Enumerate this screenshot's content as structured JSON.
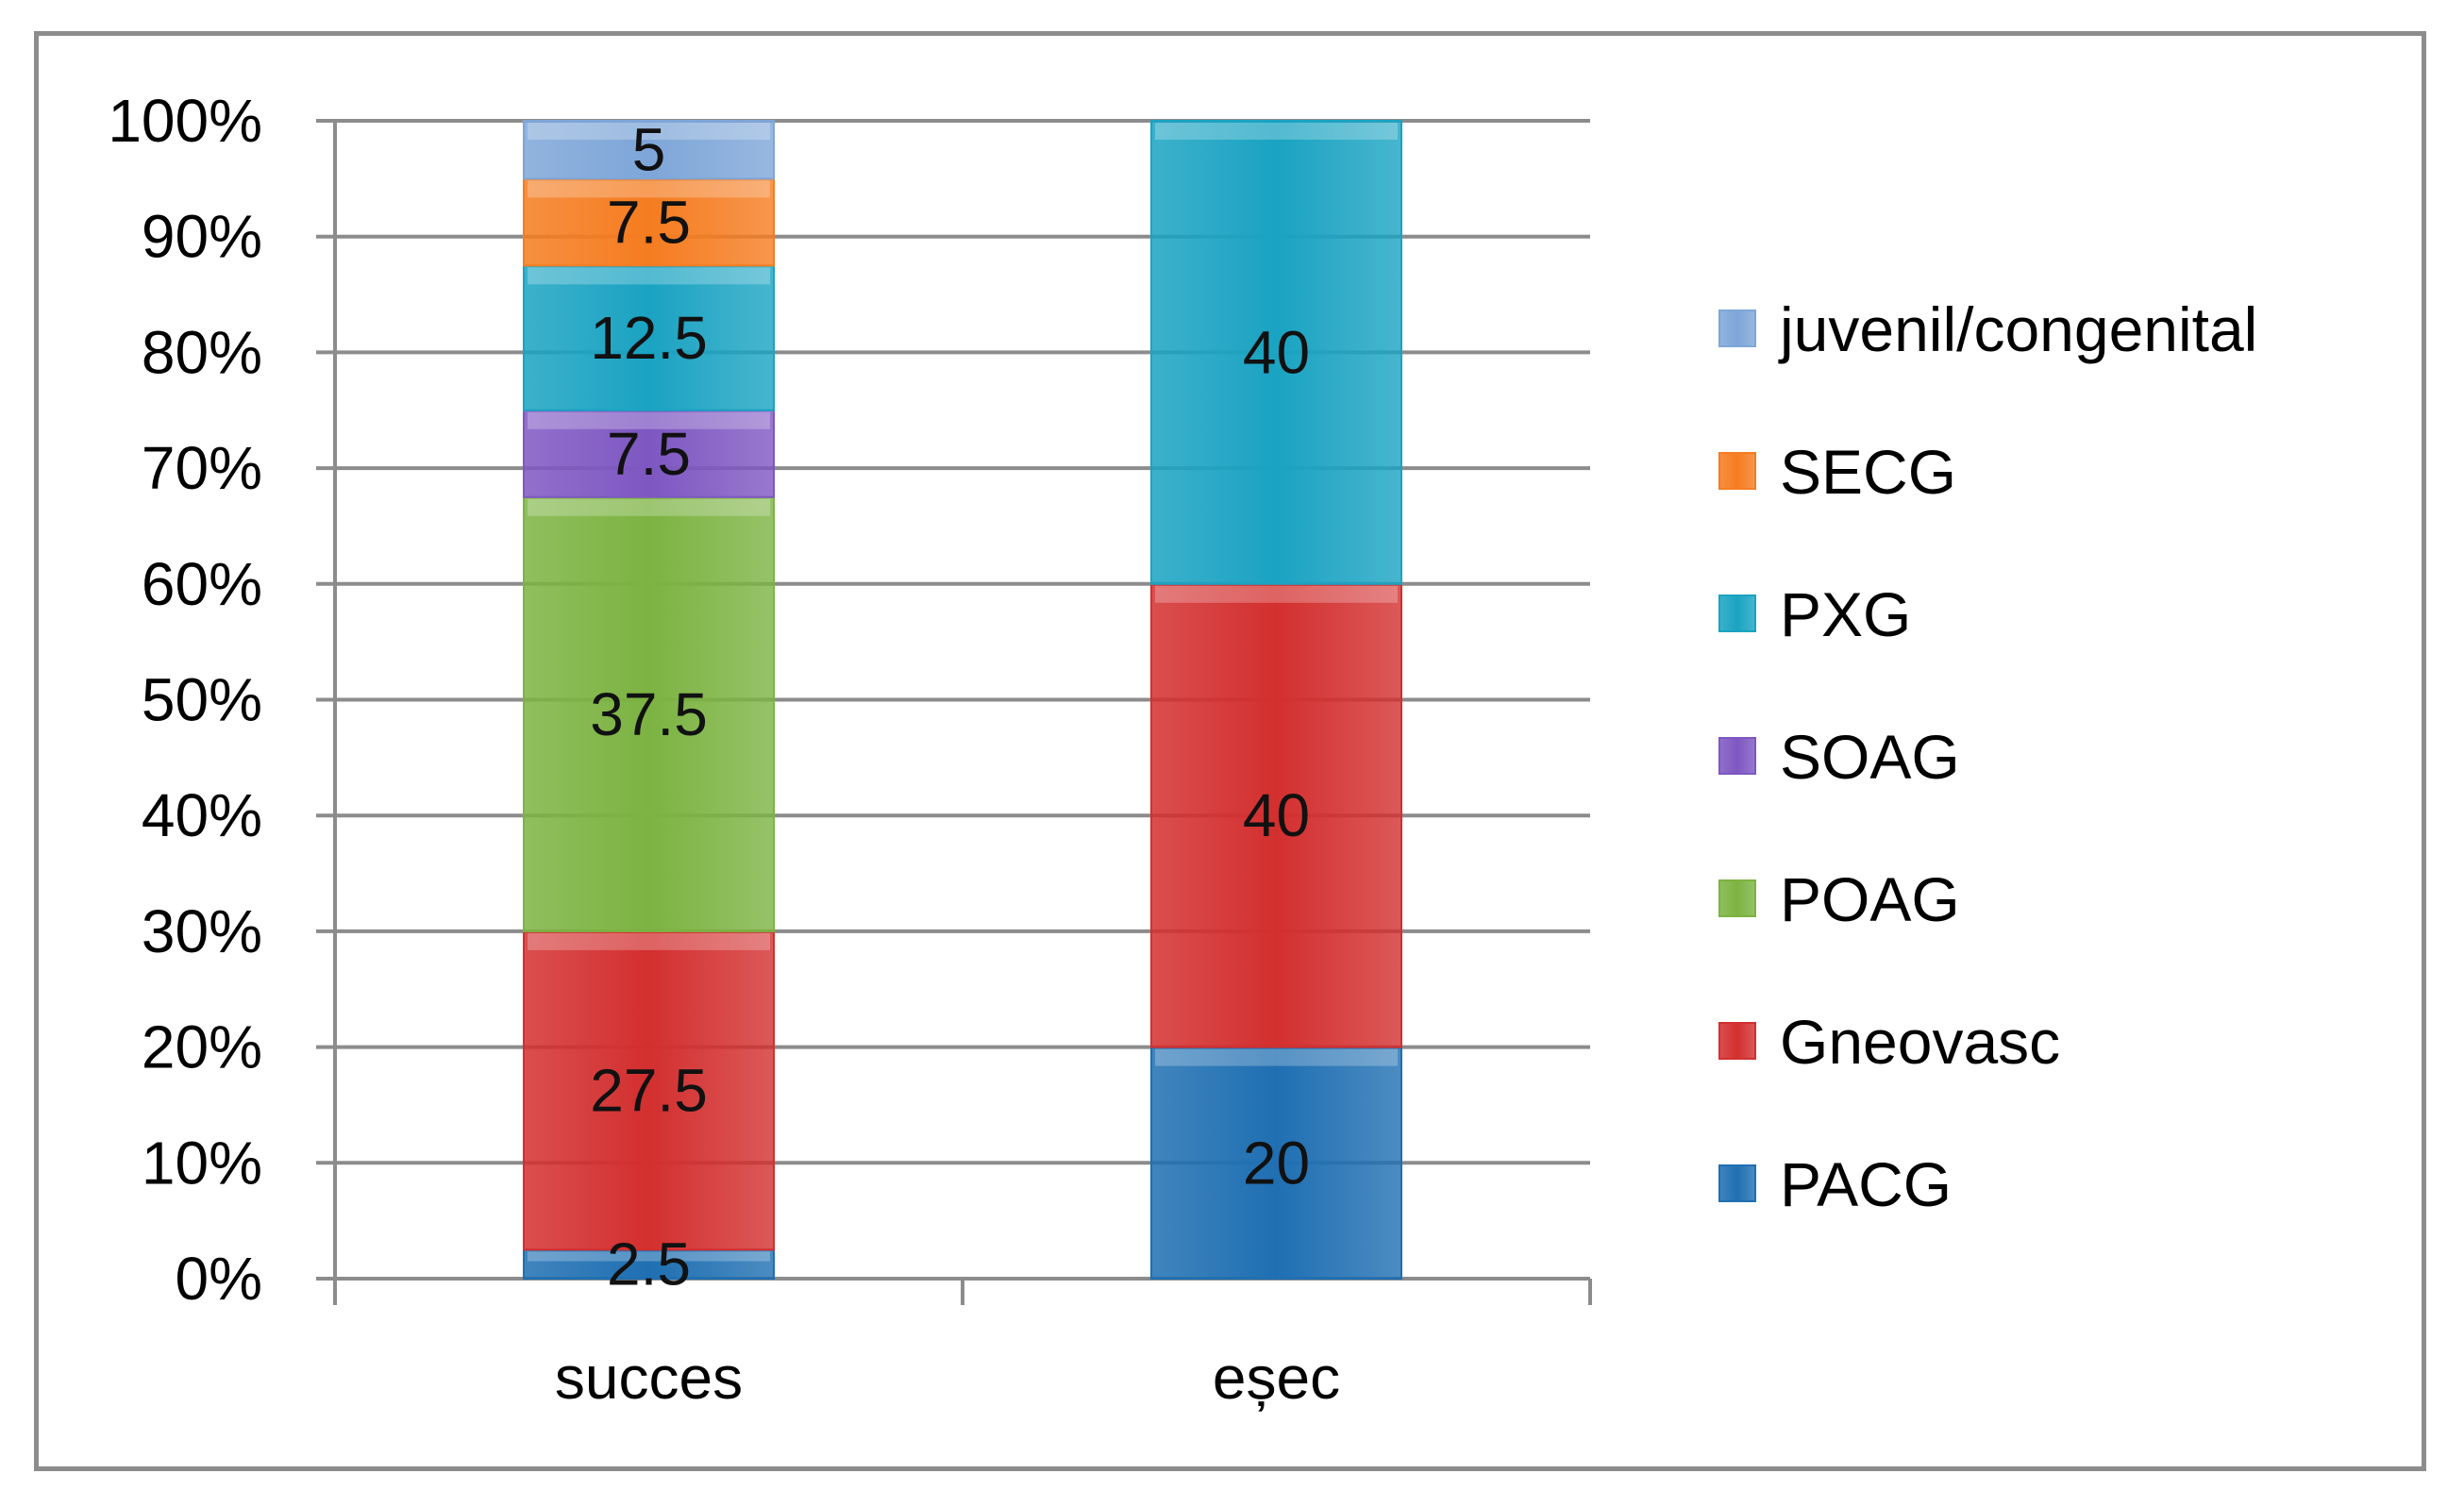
{
  "chart_data": {
    "type": "bar",
    "stacked": "percent",
    "title": "",
    "xlabel": "",
    "ylabel": "",
    "ylim": [
      0,
      100
    ],
    "yticks": [
      "0%",
      "10%",
      "20%",
      "30%",
      "40%",
      "50%",
      "60%",
      "70%",
      "80%",
      "90%",
      "100%"
    ],
    "categories": [
      "succes",
      "eșec"
    ],
    "grid": true,
    "legend_position": "right",
    "series": [
      {
        "name": "PACG",
        "values": [
          2.5,
          20
        ],
        "labels": [
          "2.5",
          "20"
        ],
        "color": "#1f6fb2"
      },
      {
        "name": "Gneovasc",
        "values": [
          27.5,
          40
        ],
        "labels": [
          "27.5",
          "40"
        ],
        "color": "#d32f2f"
      },
      {
        "name": "POAG",
        "values": [
          37.5,
          0
        ],
        "labels": [
          "37.5",
          ""
        ],
        "color": "#7cb342"
      },
      {
        "name": "SOAG",
        "values": [
          7.5,
          0
        ],
        "labels": [
          "7.5",
          ""
        ],
        "color": "#7e57c2"
      },
      {
        "name": "PXG",
        "values": [
          12.5,
          40
        ],
        "labels": [
          "12.5",
          "40"
        ],
        "color": "#1aa3c2"
      },
      {
        "name": "SECG",
        "values": [
          7.5,
          0
        ],
        "labels": [
          "7.5",
          ""
        ],
        "color": "#f57c20"
      },
      {
        "name": "juvenil/congenital",
        "values": [
          5,
          0
        ],
        "labels": [
          "5",
          ""
        ],
        "color": "#7ea6d8"
      }
    ]
  }
}
